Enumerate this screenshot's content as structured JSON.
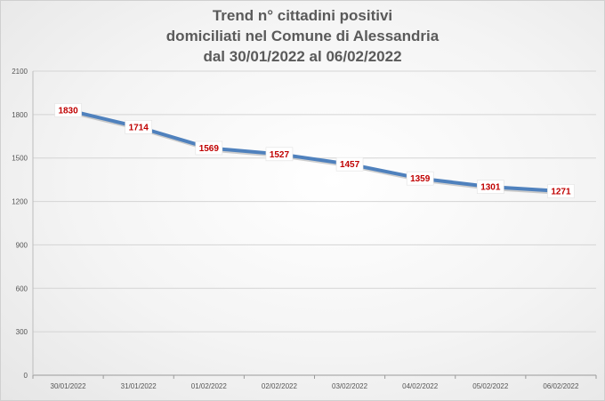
{
  "chart_data": {
    "type": "line",
    "title_lines": [
      "Trend n° cittadini positivi",
      "domiciliati nel Comune di Alessandria",
      "dal 30/01/2022 al 06/02/2022"
    ],
    "categories": [
      "30/01/2022",
      "31/01/2022",
      "01/02/2022",
      "02/02/2022",
      "03/02/2022",
      "04/02/2022",
      "05/02/2022",
      "06/02/2022"
    ],
    "values": [
      1830,
      1714,
      1569,
      1527,
      1457,
      1359,
      1301,
      1271
    ],
    "ylim": [
      0,
      2100
    ],
    "yticks": [
      0,
      300,
      600,
      900,
      1200,
      1500,
      1800,
      2100
    ],
    "grid": true,
    "line_color": "#4f81bd",
    "label_color": "#c00000"
  }
}
